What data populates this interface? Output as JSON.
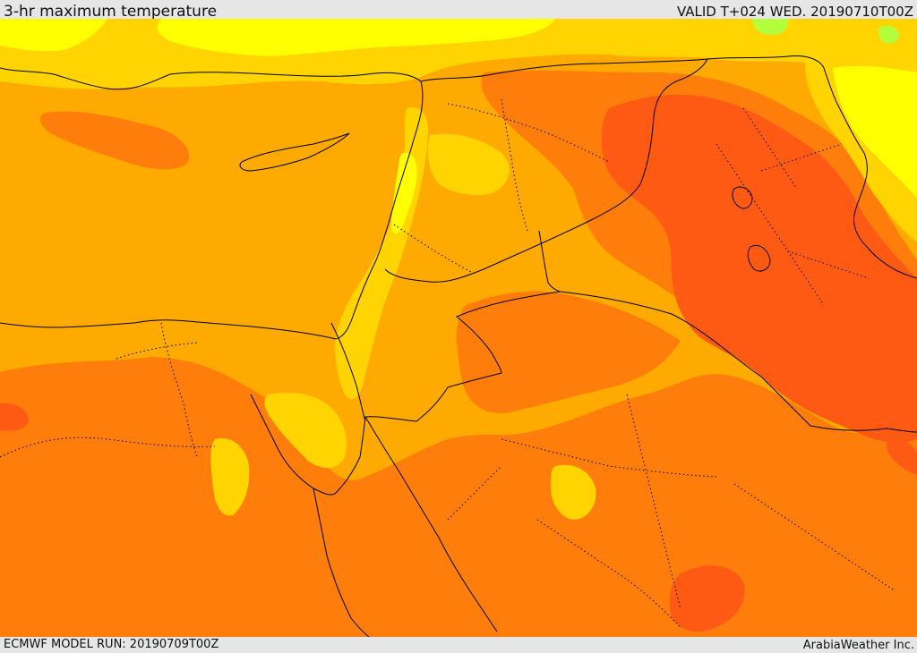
{
  "header": {
    "title": "3-hr maximum temperature",
    "valid": "VALID T+024 WED. 20190710T00Z"
  },
  "footer": {
    "model_run": "ECMWF MODEL RUN: 20190709T00Z",
    "credit": "ArabiaWeather Inc."
  },
  "palette": {
    "hottest": "#ff5a14",
    "very_hot": "#ff7d0a",
    "hot": "#ffaa00",
    "warm": "#ffd400",
    "mild": "#ffff00",
    "cool": "#b4ff3c",
    "border": "#000000"
  }
}
